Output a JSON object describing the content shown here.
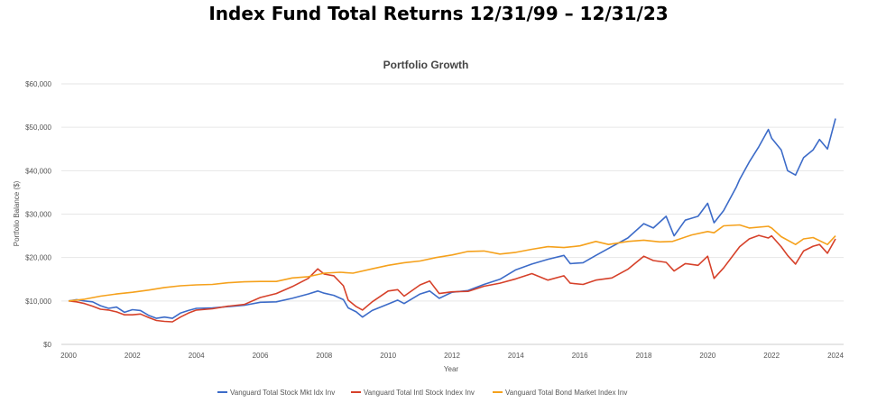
{
  "page": {
    "heading": "Index Fund Total Returns 12/31/99 – 12/31/23"
  },
  "chart_data": {
    "type": "line",
    "title": "Portfolio Growth",
    "xlabel": "Year",
    "ylabel": "Portfolio Balance ($)",
    "xlim": [
      2000,
      2024
    ],
    "ylim": [
      0,
      60000
    ],
    "x_ticks": [
      2000,
      2002,
      2004,
      2006,
      2008,
      2010,
      2012,
      2014,
      2016,
      2018,
      2020,
      2022,
      2024
    ],
    "y_ticks": [
      0,
      10000,
      20000,
      30000,
      40000,
      50000,
      60000
    ],
    "y_tick_labels": [
      "$0",
      "$10,000",
      "$20,000",
      "$30,000",
      "$40,000",
      "$50,000",
      "$60,000"
    ],
    "grid": "horizontal",
    "legend_position": "bottom",
    "series": [
      {
        "name": "Vanguard Total Stock Mkt Idx Inv",
        "color": "#3c6bc8",
        "points": [
          [
            2000.0,
            10000
          ],
          [
            2000.25,
            10300
          ],
          [
            2000.5,
            10000
          ],
          [
            2000.75,
            9800
          ],
          [
            2001.0,
            8900
          ],
          [
            2001.25,
            8300
          ],
          [
            2001.5,
            8600
          ],
          [
            2001.75,
            7400
          ],
          [
            2002.0,
            8000
          ],
          [
            2002.25,
            7800
          ],
          [
            2002.5,
            6700
          ],
          [
            2002.75,
            6000
          ],
          [
            2003.0,
            6300
          ],
          [
            2003.25,
            6000
          ],
          [
            2003.5,
            7200
          ],
          [
            2003.75,
            7800
          ],
          [
            2004.0,
            8300
          ],
          [
            2004.5,
            8400
          ],
          [
            2005.0,
            8700
          ],
          [
            2005.5,
            9000
          ],
          [
            2006.0,
            9700
          ],
          [
            2006.5,
            9800
          ],
          [
            2007.0,
            10600
          ],
          [
            2007.5,
            11600
          ],
          [
            2007.8,
            12300
          ],
          [
            2008.0,
            11800
          ],
          [
            2008.3,
            11300
          ],
          [
            2008.6,
            10300
          ],
          [
            2008.75,
            8400
          ],
          [
            2009.0,
            7500
          ],
          [
            2009.2,
            6300
          ],
          [
            2009.5,
            7800
          ],
          [
            2010.0,
            9300
          ],
          [
            2010.3,
            10200
          ],
          [
            2010.5,
            9400
          ],
          [
            2011.0,
            11600
          ],
          [
            2011.3,
            12300
          ],
          [
            2011.6,
            10600
          ],
          [
            2012.0,
            12000
          ],
          [
            2012.5,
            12400
          ],
          [
            2013.0,
            13800
          ],
          [
            2013.5,
            15000
          ],
          [
            2014.0,
            17200
          ],
          [
            2014.5,
            18500
          ],
          [
            2015.0,
            19600
          ],
          [
            2015.5,
            20500
          ],
          [
            2015.7,
            18600
          ],
          [
            2016.1,
            18800
          ],
          [
            2016.5,
            20500
          ],
          [
            2017.0,
            22500
          ],
          [
            2017.5,
            24500
          ],
          [
            2018.0,
            27800
          ],
          [
            2018.3,
            26800
          ],
          [
            2018.7,
            29500
          ],
          [
            2018.95,
            25000
          ],
          [
            2019.3,
            28600
          ],
          [
            2019.7,
            29500
          ],
          [
            2020.0,
            32500
          ],
          [
            2020.2,
            28000
          ],
          [
            2020.5,
            30800
          ],
          [
            2020.9,
            36300
          ],
          [
            2021.0,
            38000
          ],
          [
            2021.3,
            42000
          ],
          [
            2021.6,
            45500
          ],
          [
            2021.9,
            49500
          ],
          [
            2022.0,
            47500
          ],
          [
            2022.3,
            44800
          ],
          [
            2022.5,
            40000
          ],
          [
            2022.75,
            39000
          ],
          [
            2023.0,
            43000
          ],
          [
            2023.3,
            44800
          ],
          [
            2023.5,
            47200
          ],
          [
            2023.75,
            45000
          ],
          [
            2024.0,
            52000
          ]
        ]
      },
      {
        "name": "Vanguard Total Intl Stock Index Inv",
        "color": "#d6412a",
        "points": [
          [
            2000.0,
            10000
          ],
          [
            2000.25,
            9800
          ],
          [
            2000.5,
            9400
          ],
          [
            2000.75,
            8800
          ],
          [
            2001.0,
            8100
          ],
          [
            2001.25,
            7900
          ],
          [
            2001.5,
            7500
          ],
          [
            2001.75,
            6800
          ],
          [
            2002.0,
            6800
          ],
          [
            2002.25,
            7000
          ],
          [
            2002.5,
            6200
          ],
          [
            2002.75,
            5500
          ],
          [
            2003.0,
            5300
          ],
          [
            2003.25,
            5200
          ],
          [
            2003.5,
            6300
          ],
          [
            2003.75,
            7200
          ],
          [
            2004.0,
            7900
          ],
          [
            2004.5,
            8200
          ],
          [
            2005.0,
            8800
          ],
          [
            2005.5,
            9200
          ],
          [
            2006.0,
            10800
          ],
          [
            2006.5,
            11700
          ],
          [
            2007.0,
            13300
          ],
          [
            2007.5,
            15200
          ],
          [
            2007.8,
            17400
          ],
          [
            2008.0,
            16200
          ],
          [
            2008.3,
            15800
          ],
          [
            2008.6,
            13500
          ],
          [
            2008.75,
            10200
          ],
          [
            2009.0,
            8700
          ],
          [
            2009.2,
            7900
          ],
          [
            2009.5,
            9800
          ],
          [
            2010.0,
            12300
          ],
          [
            2010.3,
            12600
          ],
          [
            2010.5,
            11100
          ],
          [
            2011.0,
            13700
          ],
          [
            2011.3,
            14600
          ],
          [
            2011.6,
            11700
          ],
          [
            2012.0,
            12100
          ],
          [
            2012.5,
            12200
          ],
          [
            2013.0,
            13400
          ],
          [
            2013.5,
            14100
          ],
          [
            2014.0,
            15100
          ],
          [
            2014.5,
            16300
          ],
          [
            2015.0,
            14800
          ],
          [
            2015.5,
            15800
          ],
          [
            2015.7,
            14100
          ],
          [
            2016.1,
            13800
          ],
          [
            2016.5,
            14800
          ],
          [
            2017.0,
            15300
          ],
          [
            2017.5,
            17300
          ],
          [
            2018.0,
            20300
          ],
          [
            2018.3,
            19300
          ],
          [
            2018.7,
            18900
          ],
          [
            2018.95,
            16900
          ],
          [
            2019.3,
            18600
          ],
          [
            2019.7,
            18200
          ],
          [
            2020.0,
            20300
          ],
          [
            2020.2,
            15200
          ],
          [
            2020.5,
            17600
          ],
          [
            2020.9,
            21500
          ],
          [
            2021.0,
            22500
          ],
          [
            2021.3,
            24300
          ],
          [
            2021.6,
            25100
          ],
          [
            2021.9,
            24500
          ],
          [
            2022.0,
            25000
          ],
          [
            2022.3,
            22500
          ],
          [
            2022.5,
            20500
          ],
          [
            2022.75,
            18500
          ],
          [
            2023.0,
            21500
          ],
          [
            2023.3,
            22600
          ],
          [
            2023.5,
            23000
          ],
          [
            2023.75,
            21000
          ],
          [
            2024.0,
            24300
          ]
        ]
      },
      {
        "name": "Vanguard Total Bond Market Index Inv",
        "color": "#f5a11c",
        "points": [
          [
            2000.0,
            10000
          ],
          [
            2000.5,
            10400
          ],
          [
            2001.0,
            11100
          ],
          [
            2001.5,
            11600
          ],
          [
            2002.0,
            12000
          ],
          [
            2002.5,
            12500
          ],
          [
            2003.0,
            13100
          ],
          [
            2003.5,
            13500
          ],
          [
            2004.0,
            13700
          ],
          [
            2004.5,
            13800
          ],
          [
            2005.0,
            14200
          ],
          [
            2005.5,
            14400
          ],
          [
            2006.0,
            14500
          ],
          [
            2006.5,
            14500
          ],
          [
            2007.0,
            15300
          ],
          [
            2007.5,
            15600
          ],
          [
            2008.0,
            16400
          ],
          [
            2008.5,
            16600
          ],
          [
            2008.9,
            16400
          ],
          [
            2009.5,
            17400
          ],
          [
            2010.0,
            18200
          ],
          [
            2010.5,
            18800
          ],
          [
            2011.0,
            19200
          ],
          [
            2011.5,
            20000
          ],
          [
            2012.0,
            20600
          ],
          [
            2012.5,
            21400
          ],
          [
            2013.0,
            21500
          ],
          [
            2013.5,
            20800
          ],
          [
            2014.0,
            21200
          ],
          [
            2014.5,
            21900
          ],
          [
            2015.0,
            22500
          ],
          [
            2015.5,
            22300
          ],
          [
            2016.0,
            22700
          ],
          [
            2016.5,
            23700
          ],
          [
            2016.9,
            23000
          ],
          [
            2017.5,
            23700
          ],
          [
            2018.0,
            24000
          ],
          [
            2018.5,
            23600
          ],
          [
            2018.9,
            23700
          ],
          [
            2019.5,
            25200
          ],
          [
            2020.0,
            26000
          ],
          [
            2020.2,
            25700
          ],
          [
            2020.5,
            27300
          ],
          [
            2021.0,
            27500
          ],
          [
            2021.3,
            26800
          ],
          [
            2021.9,
            27200
          ],
          [
            2022.0,
            26800
          ],
          [
            2022.3,
            24800
          ],
          [
            2022.75,
            23000
          ],
          [
            2023.0,
            24300
          ],
          [
            2023.3,
            24600
          ],
          [
            2023.75,
            23000
          ],
          [
            2024.0,
            25000
          ]
        ]
      }
    ]
  }
}
